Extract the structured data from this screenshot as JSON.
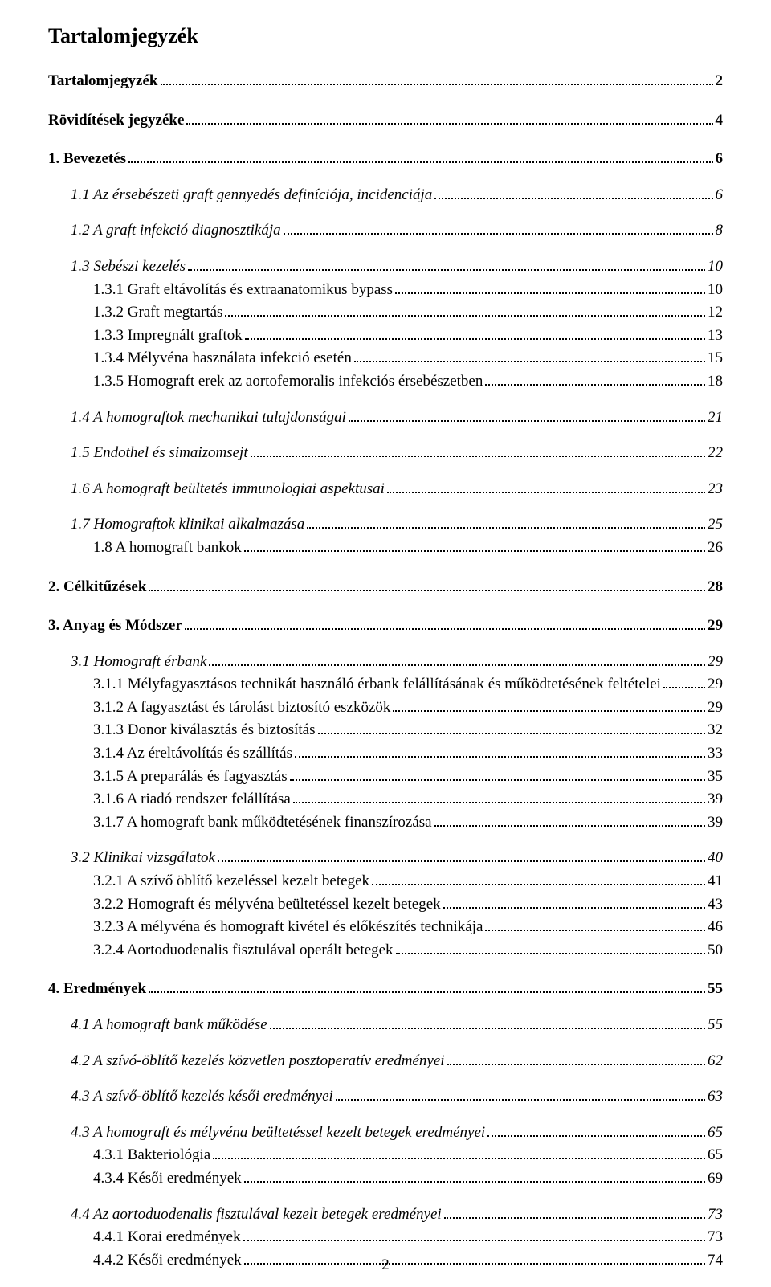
{
  "page": {
    "title": "Tartalomjegyzék",
    "page_number": "2",
    "font_family": "Times New Roman",
    "text_color": "#000000",
    "background_color": "#ffffff",
    "title_fontsize": 26,
    "body_fontsize": 19
  },
  "toc": [
    {
      "label": "Tartalomjegyzék",
      "page": "2",
      "level": 0
    },
    {
      "label": "Rövidítések jegyzéke",
      "page": "4",
      "level": 0
    },
    {
      "label": "1. Bevezetés",
      "page": "6",
      "level": 0
    },
    {
      "label": "1.1 Az érsebészeti graft gennyedés definíciója, incidenciája",
      "page": "6",
      "level": 1
    },
    {
      "label": "1.2 A graft infekció diagnosztikája",
      "page": "8",
      "level": 1
    },
    {
      "label": "1.3 Sebészi kezelés",
      "page": "10",
      "level": 1
    },
    {
      "label": "1.3.1 Graft eltávolítás és extraanatomikus bypass",
      "page": "10",
      "level": 2
    },
    {
      "label": "1.3.2 Graft megtartás",
      "page": "12",
      "level": 2
    },
    {
      "label": "1.3.3 Impregnált graftok",
      "page": "13",
      "level": 2
    },
    {
      "label": "1.3.4 Mélyvéna használata infekció esetén",
      "page": "15",
      "level": 2
    },
    {
      "label": "1.3.5 Homograft erek az aortofemoralis infekciós érsebészetben",
      "page": "18",
      "level": 2
    },
    {
      "label": "1.4 A homograftok mechanikai tulajdonságai",
      "page": "21",
      "level": 1
    },
    {
      "label": "1.5 Endothel és simaizomsejt",
      "page": "22",
      "level": 1
    },
    {
      "label": "1.6 A homograft beültetés immunologiai aspektusai",
      "page": "23",
      "level": 1
    },
    {
      "label": "1.7 Homograftok klinikai alkalmazása",
      "page": "25",
      "level": 1
    },
    {
      "label": "1.8 A homograft bankok",
      "page": "26",
      "level": 2
    },
    {
      "label": "2. Célkitűzések",
      "page": "28",
      "level": 0
    },
    {
      "label": "3. Anyag és Módszer",
      "page": "29",
      "level": 0
    },
    {
      "label": "3.1 Homograft érbank",
      "page": "29",
      "level": 1
    },
    {
      "label": "3.1.1 Mélyfagyasztásos technikát használó érbank felállításának és működtetésének feltételei",
      "page": "29",
      "level": 2
    },
    {
      "label": "3.1.2 A fagyasztást és tárolást biztosító eszközök",
      "page": "29",
      "level": 2
    },
    {
      "label": "3.1.3 Donor kiválasztás és biztosítás",
      "page": "32",
      "level": 2
    },
    {
      "label": "3.1.4 Az éreltávolítás és szállítás",
      "page": "33",
      "level": 2
    },
    {
      "label": "3.1.5 A preparálás és fagyasztás",
      "page": "35",
      "level": 2
    },
    {
      "label": "3.1.6 A riadó rendszer felállítása",
      "page": "39",
      "level": 2
    },
    {
      "label": "3.1.7 A homograft bank működtetésének finanszírozása",
      "page": "39",
      "level": 2
    },
    {
      "label": "3.2 Klinikai vizsgálatok",
      "page": "40",
      "level": 1
    },
    {
      "label": "3.2.1 A szívő öblítő kezeléssel kezelt betegek",
      "page": "41",
      "level": 2
    },
    {
      "label": "3.2.2 Homograft és mélyvéna beültetéssel kezelt betegek",
      "page": "43",
      "level": 2
    },
    {
      "label": "3.2.3 A mélyvéna és homograft kivétel és előkészítés technikája",
      "page": "46",
      "level": 2
    },
    {
      "label": "3.2.4 Aortoduodenalis fisztulával operált betegek",
      "page": "50",
      "level": 2
    },
    {
      "label": "4. Eredmények",
      "page": "55",
      "level": 0
    },
    {
      "label": "4.1 A homograft bank működése",
      "page": "55",
      "level": 1
    },
    {
      "label": "4.2 A szívó-öblítő kezelés közvetlen posztoperatív eredményei",
      "page": "62",
      "level": 1
    },
    {
      "label": "4.3 A szívő-öblítő kezelés késői eredményei",
      "page": "63",
      "level": 1
    },
    {
      "label": "4.3 A homograft és mélyvéna beültetéssel kezelt betegek eredményei",
      "page": "65",
      "level": 1
    },
    {
      "label": "4.3.1 Bakteriológia",
      "page": "65",
      "level": 2
    },
    {
      "label": "4.3.4 Késői eredmények",
      "page": "69",
      "level": 2
    },
    {
      "label": "4.4 Az aortoduodenalis fisztulával kezelt betegek eredményei",
      "page": "73",
      "level": 1
    },
    {
      "label": "4.4.1 Korai eredmények",
      "page": "73",
      "level": 2
    },
    {
      "label": "4.4.2 Késői eredmények",
      "page": "74",
      "level": 2
    }
  ]
}
